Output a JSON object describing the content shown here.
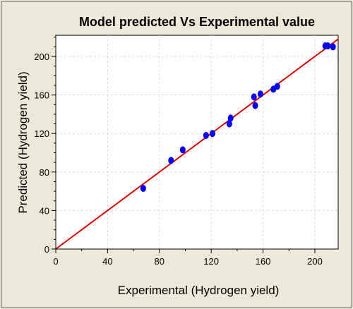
{
  "chart_data": {
    "type": "scatter",
    "title": "Model predicted Vs Experimental value",
    "xlabel": "Experimental (Hydrogen yield)",
    "ylabel": "Predicted (Hydrogen yield)",
    "xlim": [
      0,
      218
    ],
    "ylim": [
      0,
      222
    ],
    "x_ticks": [
      0,
      40,
      80,
      120,
      160,
      200
    ],
    "y_ticks": [
      0,
      40,
      80,
      120,
      160,
      200
    ],
    "grid": true,
    "fit_line": {
      "from": [
        0,
        0
      ],
      "to": [
        218,
        218
      ],
      "color": "#e00000"
    },
    "marker_color": "#0000ee",
    "points": [
      {
        "x": 67.5,
        "y": 63
      },
      {
        "x": 89,
        "y": 92
      },
      {
        "x": 98,
        "y": 103
      },
      {
        "x": 116,
        "y": 118
      },
      {
        "x": 121,
        "y": 120
      },
      {
        "x": 134,
        "y": 130
      },
      {
        "x": 135,
        "y": 136
      },
      {
        "x": 153,
        "y": 158
      },
      {
        "x": 154,
        "y": 149
      },
      {
        "x": 158,
        "y": 161
      },
      {
        "x": 168,
        "y": 166
      },
      {
        "x": 171,
        "y": 169
      },
      {
        "x": 208,
        "y": 211
      },
      {
        "x": 210,
        "y": 211
      },
      {
        "x": 214,
        "y": 210
      }
    ]
  }
}
